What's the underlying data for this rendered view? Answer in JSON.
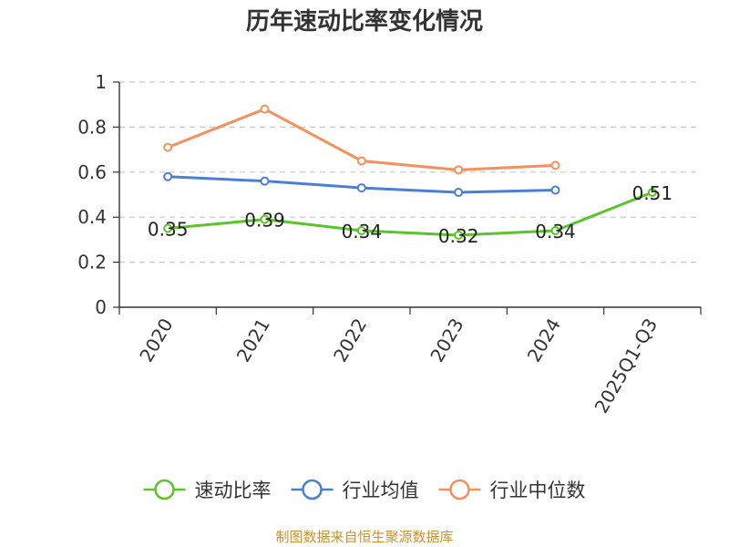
{
  "chart_data": {
    "type": "line",
    "title": "历年速动比率变化情况",
    "categories": [
      "2020",
      "2021",
      "2022",
      "2023",
      "2024",
      "2025Q1-Q3"
    ],
    "ylim": [
      0,
      1
    ],
    "yticks": [
      0,
      0.2,
      0.4,
      0.6,
      0.8,
      1
    ],
    "ytick_labels": [
      "0",
      "0.2",
      "0.4",
      "0.6",
      "0.8",
      "1"
    ],
    "grid": true,
    "legend_position": "bottom-center",
    "series": [
      {
        "name": "速动比率",
        "color": "#5bc42a",
        "values": [
          0.35,
          0.39,
          0.34,
          0.32,
          0.34,
          0.51
        ],
        "labels": [
          "0.35",
          "0.39",
          "0.34",
          "0.32",
          "0.34",
          "0.51"
        ]
      },
      {
        "name": "行业均值",
        "color": "#4a7fd6",
        "values": [
          0.58,
          0.56,
          0.53,
          0.51,
          0.52,
          null
        ]
      },
      {
        "name": "行业中位数",
        "color": "#f5905a",
        "values": [
          0.71,
          0.88,
          0.65,
          0.61,
          0.63,
          null
        ]
      }
    ],
    "source": "制图数据来自恒生聚源数据库"
  }
}
